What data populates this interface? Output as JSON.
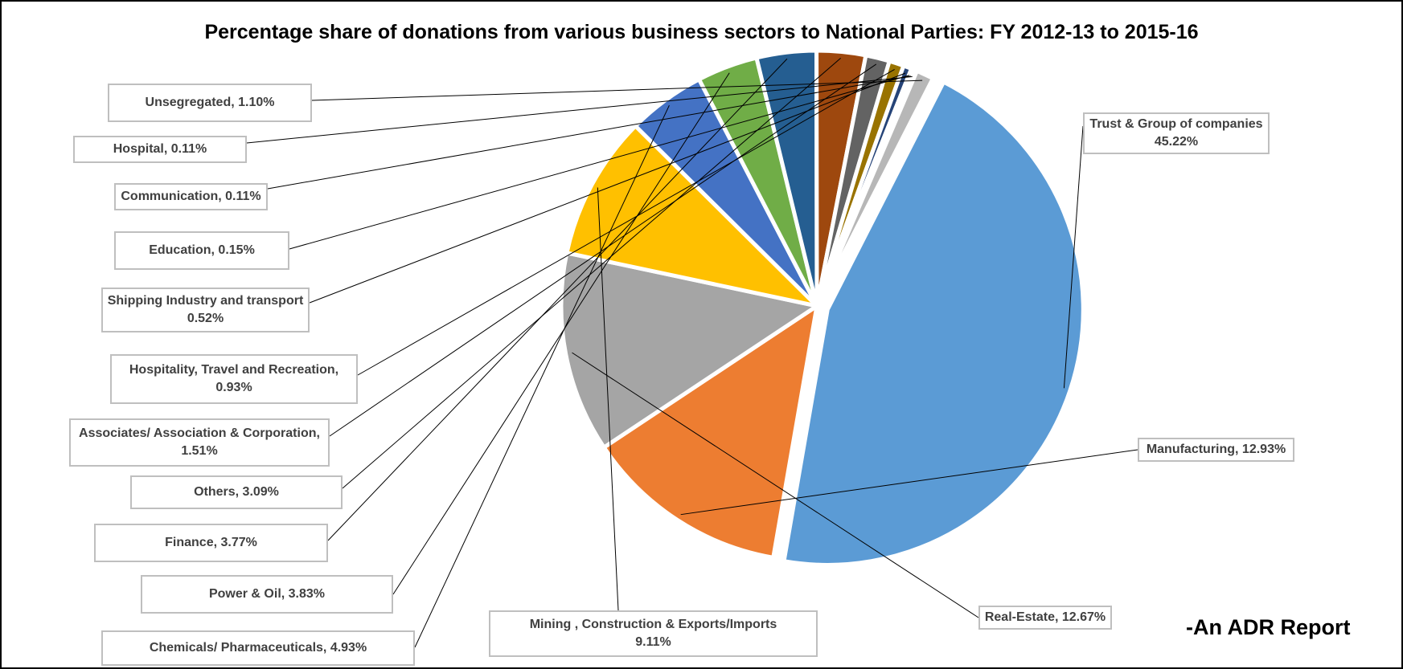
{
  "chart_data": {
    "type": "pie",
    "title": "Percentage share of donations from various business sectors to National Parties: FY 2012-13 to 2015-16",
    "slices": [
      {
        "name": "Trust & Group of companies",
        "value": 45.22,
        "label_line1": "Trust & Group of companies",
        "label_line2": "45.22%",
        "color": "#5b9bd5"
      },
      {
        "name": "Manufacturing",
        "value": 12.93,
        "label_line1": "Manufacturing, 12.93%",
        "label_line2": "",
        "color": "#ed7d31"
      },
      {
        "name": "Real-Estate",
        "value": 12.67,
        "label_line1": "Real-Estate, 12.67%",
        "label_line2": "",
        "color": "#a5a5a5"
      },
      {
        "name": "Mining , Construction & Exports/Imports",
        "value": 9.11,
        "label_line1": "Mining , Construction & Exports/Imports",
        "label_line2": "9.11%",
        "color": "#ffc000"
      },
      {
        "name": "Chemicals/ Pharmaceuticals",
        "value": 4.93,
        "label_line1": "Chemicals/ Pharmaceuticals, 4.93%",
        "label_line2": "",
        "color": "#4472c4"
      },
      {
        "name": "Power & Oil",
        "value": 3.83,
        "label_line1": "Power & Oil, 3.83%",
        "label_line2": "",
        "color": "#70ad47"
      },
      {
        "name": "Finance",
        "value": 3.77,
        "label_line1": "Finance, 3.77%",
        "label_line2": "",
        "color": "#255e91"
      },
      {
        "name": "Others",
        "value": 3.09,
        "label_line1": "Others, 3.09%",
        "label_line2": "",
        "color": "#9e480e"
      },
      {
        "name": "Associates/ Association & Corporation",
        "value": 1.51,
        "label_line1": "Associates/ Association & Corporation,",
        "label_line2": "1.51%",
        "color": "#636363"
      },
      {
        "name": "Hospitality, Travel and Recreation",
        "value": 0.93,
        "label_line1": "Hospitality, Travel and Recreation,",
        "label_line2": "0.93%",
        "color": "#997300"
      },
      {
        "name": "Shipping Industry and transport",
        "value": 0.52,
        "label_line1": "Shipping Industry and transport",
        "label_line2": "0.52%",
        "color": "#264478"
      },
      {
        "name": "Education",
        "value": 0.15,
        "label_line1": "Education, 0.15%",
        "label_line2": "",
        "color": "#43682b"
      },
      {
        "name": "Communication",
        "value": 0.11,
        "label_line1": "Communication, 0.11%",
        "label_line2": "",
        "color": "#698ed0"
      },
      {
        "name": "Hospital",
        "value": 0.11,
        "label_line1": "Hospital, 0.11%",
        "label_line2": "",
        "color": "#f1975a"
      },
      {
        "name": "Unsegregated",
        "value": 1.1,
        "label_line1": "Unsegregated, 1.10%",
        "label_line2": "",
        "color": "#b7b7b7"
      }
    ],
    "legend": "none"
  },
  "credit": "-An ADR Report"
}
